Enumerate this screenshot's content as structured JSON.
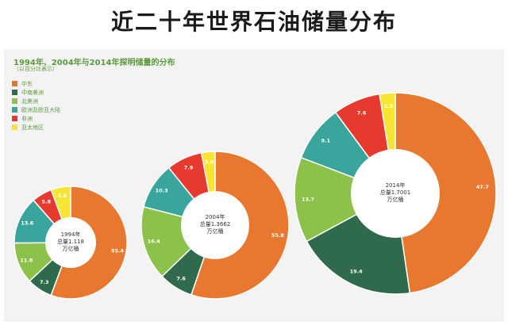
{
  "slide_title": "近二十年世界石油储量分布",
  "colors": {
    "中东": "#e8782f",
    "中南美洲": "#2f6a4c",
    "北美洲": "#8cc24a",
    "欧洲及欧亚大陆": "#3aa59c",
    "非洲": "#e63a2e",
    "亚太地区": "#f7e533"
  },
  "chart_data": {
    "type": "pie",
    "title": "1994年、2004年与2014年探明储量的分布",
    "subtitle": "（以百分比表示）",
    "legend": [
      "中东",
      "中南美洲",
      "北美洲",
      "欧洲及欧亚大陆",
      "非洲",
      "亚太地区"
    ],
    "legend_position": "top-left",
    "donut": true,
    "pies": [
      {
        "year_label": "1994年",
        "total_label": "总量1.118",
        "unit_label": "万亿桶",
        "total": 1.118,
        "slices": [
          {
            "category": "中东",
            "value": 55.4
          },
          {
            "category": "中南美洲",
            "value": 7.3
          },
          {
            "category": "北美洲",
            "value": 11.8
          },
          {
            "category": "欧洲及欧亚大陆",
            "value": 13.6
          },
          {
            "category": "非洲",
            "value": 5.8
          },
          {
            "category": "亚太地区",
            "value": 5.6
          }
        ]
      },
      {
        "year_label": "2004年",
        "total_label": "总量1.3662",
        "unit_label": "万亿桶",
        "total": 1.3662,
        "slices": [
          {
            "category": "中东",
            "value": 55.8
          },
          {
            "category": "中南美洲",
            "value": 7.6
          },
          {
            "category": "北美洲",
            "value": 16.4
          },
          {
            "category": "欧洲及欧亚大陆",
            "value": 10.3
          },
          {
            "category": "非洲",
            "value": 7.9
          },
          {
            "category": "亚太地区",
            "value": 3.0
          }
        ]
      },
      {
        "year_label": "2014年",
        "total_label": "总量1.7001",
        "unit_label": "万亿桶",
        "total": 1.7001,
        "slices": [
          {
            "category": "中东",
            "value": 47.7
          },
          {
            "category": "中南美洲",
            "value": 19.4
          },
          {
            "category": "北美洲",
            "value": 13.7
          },
          {
            "category": "欧洲及欧亚大陆",
            "value": 9.1
          },
          {
            "category": "非洲",
            "value": 7.6
          },
          {
            "category": "亚太地区",
            "value": 2.5
          }
        ]
      }
    ]
  }
}
